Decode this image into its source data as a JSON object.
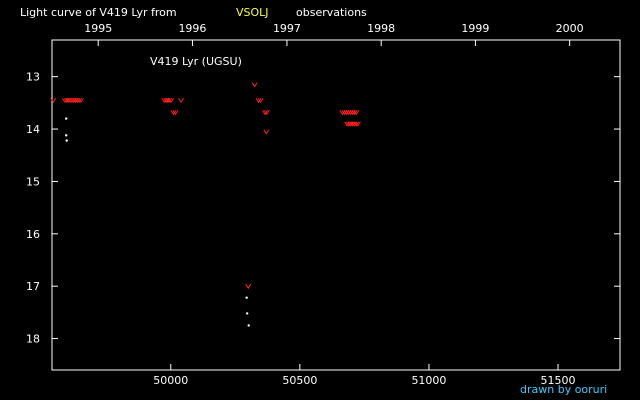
{
  "chart_data": {
    "type": "scatter",
    "title_prefix": "Light curve of V419 Lyr from",
    "title_highlight": "VSOLJ",
    "title_suffix": "observations",
    "annotation": "V419 Lyr (UGSU)",
    "credit": "drawn by ooruri",
    "xlabel": "",
    "ylabel": "",
    "xlim": [
      49540,
      51740
    ],
    "ylim": [
      18.6,
      12.3
    ],
    "y_reversed": true,
    "grid": false,
    "x_ticks": [
      50000,
      50500,
      51000,
      51500
    ],
    "x_tick_labels": [
      "50000",
      "50500",
      "51000",
      "51500"
    ],
    "y_ticks": [
      13,
      14,
      15,
      16,
      17,
      18
    ],
    "y_tick_labels": [
      "13",
      "14",
      "15",
      "16",
      "17",
      "18"
    ],
    "year_ticks": [
      {
        "label": "1995",
        "jd": 49719
      },
      {
        "label": "1996",
        "jd": 50084
      },
      {
        "label": "1997",
        "jd": 50450
      },
      {
        "label": "1998",
        "jd": 50815
      },
      {
        "label": "1999",
        "jd": 51180
      },
      {
        "label": "2000",
        "jd": 51545
      }
    ],
    "colors": {
      "background": "#000000",
      "axes": "#ffffff",
      "fainter_than": "#ff2020",
      "observed": "#ffffff",
      "highlight": "#ffff33",
      "credit": "#33ccff"
    },
    "series": [
      {
        "marker": "v",
        "color": "#ff2020",
        "points": [
          [
            49545,
            13.45
          ],
          [
            49590,
            13.45
          ],
          [
            49597,
            13.45
          ],
          [
            49603,
            13.45
          ],
          [
            49610,
            13.45
          ],
          [
            49617,
            13.45
          ],
          [
            49624,
            13.45
          ],
          [
            49631,
            13.45
          ],
          [
            49638,
            13.45
          ],
          [
            49645,
            13.45
          ],
          [
            49652,
            13.45
          ],
          [
            49975,
            13.45
          ],
          [
            49982,
            13.45
          ],
          [
            49988,
            13.45
          ],
          [
            49994,
            13.45
          ],
          [
            50001,
            13.45
          ],
          [
            50010,
            13.68
          ],
          [
            50018,
            13.68
          ],
          [
            50040,
            13.45
          ],
          [
            50300,
            17.0
          ],
          [
            50325,
            13.15
          ],
          [
            50340,
            13.45
          ],
          [
            50348,
            13.45
          ],
          [
            50365,
            13.68
          ],
          [
            50372,
            13.68
          ],
          [
            50370,
            14.05
          ],
          [
            50665,
            13.68
          ],
          [
            50673,
            13.68
          ],
          [
            50681,
            13.68
          ],
          [
            50689,
            13.68
          ],
          [
            50697,
            13.68
          ],
          [
            50705,
            13.68
          ],
          [
            50712,
            13.68
          ],
          [
            50719,
            13.68
          ],
          [
            50683,
            13.9
          ],
          [
            50690,
            13.9
          ],
          [
            50697,
            13.9
          ],
          [
            50704,
            13.9
          ],
          [
            50711,
            13.9
          ],
          [
            50718,
            13.9
          ],
          [
            50725,
            13.9
          ]
        ]
      },
      {
        "marker": "dot",
        "color": "#ffffff",
        "points": [
          [
            49595,
            13.8
          ],
          [
            49595,
            14.12
          ],
          [
            49597,
            14.22
          ],
          [
            50294,
            17.22
          ],
          [
            50296,
            17.52
          ],
          [
            50302,
            17.75
          ]
        ]
      }
    ]
  }
}
